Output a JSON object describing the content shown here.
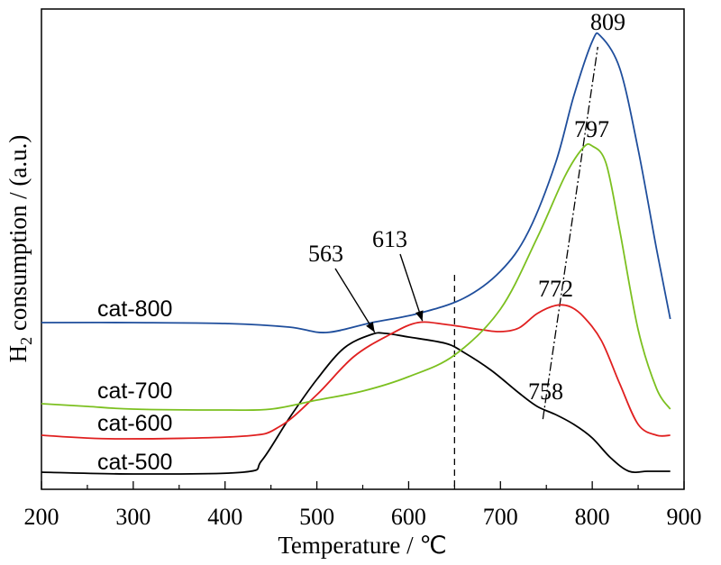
{
  "chart_data": {
    "type": "line",
    "title": "",
    "xlabel": "Temperature / ℃",
    "ylabel_main": "H",
    "ylabel_sub": "2",
    "ylabel_rest": " consumption / (a.u.)",
    "xlim": [
      200,
      900
    ],
    "xticks": [
      200,
      300,
      400,
      500,
      600,
      700,
      800,
      900
    ],
    "grid": false,
    "legend": "none",
    "series": [
      {
        "name": "cat-500",
        "color": "#000000",
        "x": [
          200,
          300,
          420,
          440,
          470,
          500,
          530,
          560,
          575,
          600,
          640,
          660,
          690,
          720,
          740,
          760,
          780,
          800,
          820,
          840,
          860,
          885
        ],
        "y": [
          2,
          0,
          2,
          15,
          62,
          105,
          140,
          155,
          156,
          152,
          145,
          135,
          115,
          90,
          75,
          66,
          55,
          40,
          18,
          3,
          3,
          3
        ]
      },
      {
        "name": "cat-600",
        "color": "#E02020",
        "x": [
          200,
          280,
          420,
          460,
          500,
          540,
          580,
          610,
          640,
          680,
          700,
          720,
          740,
          760,
          775,
          790,
          810,
          830,
          850,
          870,
          885
        ],
        "y": [
          43,
          39,
          42,
          53,
          88,
          130,
          155,
          168,
          166,
          160,
          158,
          162,
          178,
          187,
          186,
          175,
          148,
          100,
          55,
          43,
          43
        ]
      },
      {
        "name": "cat-700",
        "color": "#7CC020",
        "x": [
          200,
          250,
          300,
          400,
          450,
          500,
          550,
          600,
          650,
          700,
          740,
          770,
          790,
          800,
          815,
          830,
          850,
          870,
          885
        ],
        "y": [
          78,
          75,
          72,
          71,
          72,
          82,
          92,
          108,
          132,
          183,
          262,
          330,
          362,
          364,
          345,
          270,
          160,
          95,
          72
        ]
      },
      {
        "name": "cat-800",
        "color": "#1F4E9C",
        "x": [
          200,
          300,
          400,
          470,
          510,
          560,
          610,
          660,
          700,
          730,
          760,
          780,
          800,
          809,
          830,
          850,
          870,
          885
        ],
        "y": [
          168,
          168,
          167,
          163,
          157,
          168,
          178,
          195,
          225,
          268,
          345,
          420,
          480,
          486,
          450,
          360,
          250,
          172
        ]
      }
    ],
    "series_labels": [
      {
        "text": "cat-800",
        "series": "cat-800"
      },
      {
        "text": "cat-700",
        "series": "cat-700"
      },
      {
        "text": "cat-600",
        "series": "cat-600"
      },
      {
        "text": "cat-500",
        "series": "cat-500"
      }
    ],
    "annotations": [
      {
        "text": "563",
        "x": 563,
        "series": "cat-500"
      },
      {
        "text": "613",
        "x": 613,
        "series": "cat-600"
      },
      {
        "text": "772",
        "x": 772,
        "series": "cat-600"
      },
      {
        "text": "758",
        "x": 758,
        "series": "cat-500"
      },
      {
        "text": "797",
        "x": 797,
        "series": "cat-700"
      },
      {
        "text": "809",
        "x": 809,
        "series": "cat-800"
      }
    ],
    "reference_line": {
      "x": 650,
      "style": "dashed"
    },
    "trend_line": {
      "style": "dash-dot",
      "from_x": 758,
      "to_x": 809
    }
  }
}
